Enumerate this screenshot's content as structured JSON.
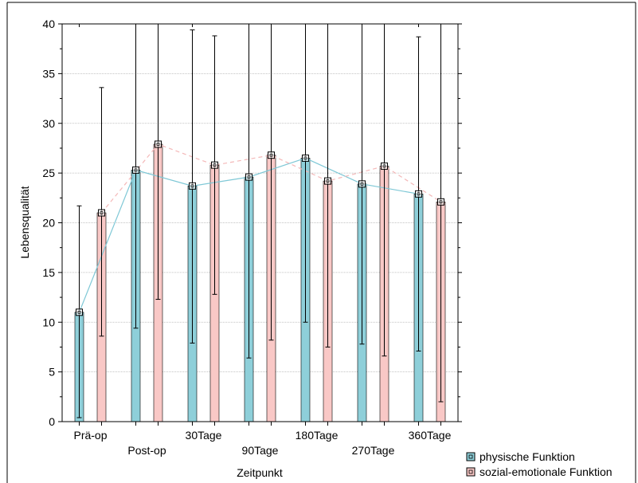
{
  "chart_data": {
    "type": "bar",
    "title": "",
    "xlabel": "Zeitpunkt",
    "ylabel": "Lebensqualität",
    "ylim": [
      0,
      40
    ],
    "yticks": [
      0,
      5,
      10,
      15,
      20,
      25,
      30,
      35,
      40
    ],
    "grid": true,
    "legend_position": "bottom-right",
    "categories": [
      "Prä-op",
      "Post-op",
      "30Tage",
      "90Tage",
      "180Tage",
      "270Tage",
      "360Tage"
    ],
    "series": [
      {
        "name": "physische Funktion",
        "color": "#8ecfd9",
        "line_color": "#7fc8d6",
        "line_style": "solid",
        "values": [
          11.0,
          25.3,
          23.7,
          24.6,
          26.5,
          23.9,
          22.9
        ],
        "error_low": [
          0.4,
          9.4,
          7.9,
          6.4,
          10.0,
          7.8,
          7.1
        ],
        "error_high": [
          21.7,
          40,
          39.4,
          40,
          40,
          40,
          38.7
        ]
      },
      {
        "name": "sozial-emotionale Funktion",
        "color": "#f9c8c6",
        "line_color": "#f4b8b8",
        "line_style": "dashed",
        "values": [
          21.0,
          27.9,
          25.8,
          26.8,
          24.2,
          25.7,
          22.1
        ],
        "error_low": [
          8.6,
          12.3,
          12.8,
          8.2,
          7.5,
          6.6,
          2.0
        ],
        "error_high": [
          33.6,
          40,
          38.8,
          40,
          40,
          40,
          40
        ]
      }
    ]
  }
}
